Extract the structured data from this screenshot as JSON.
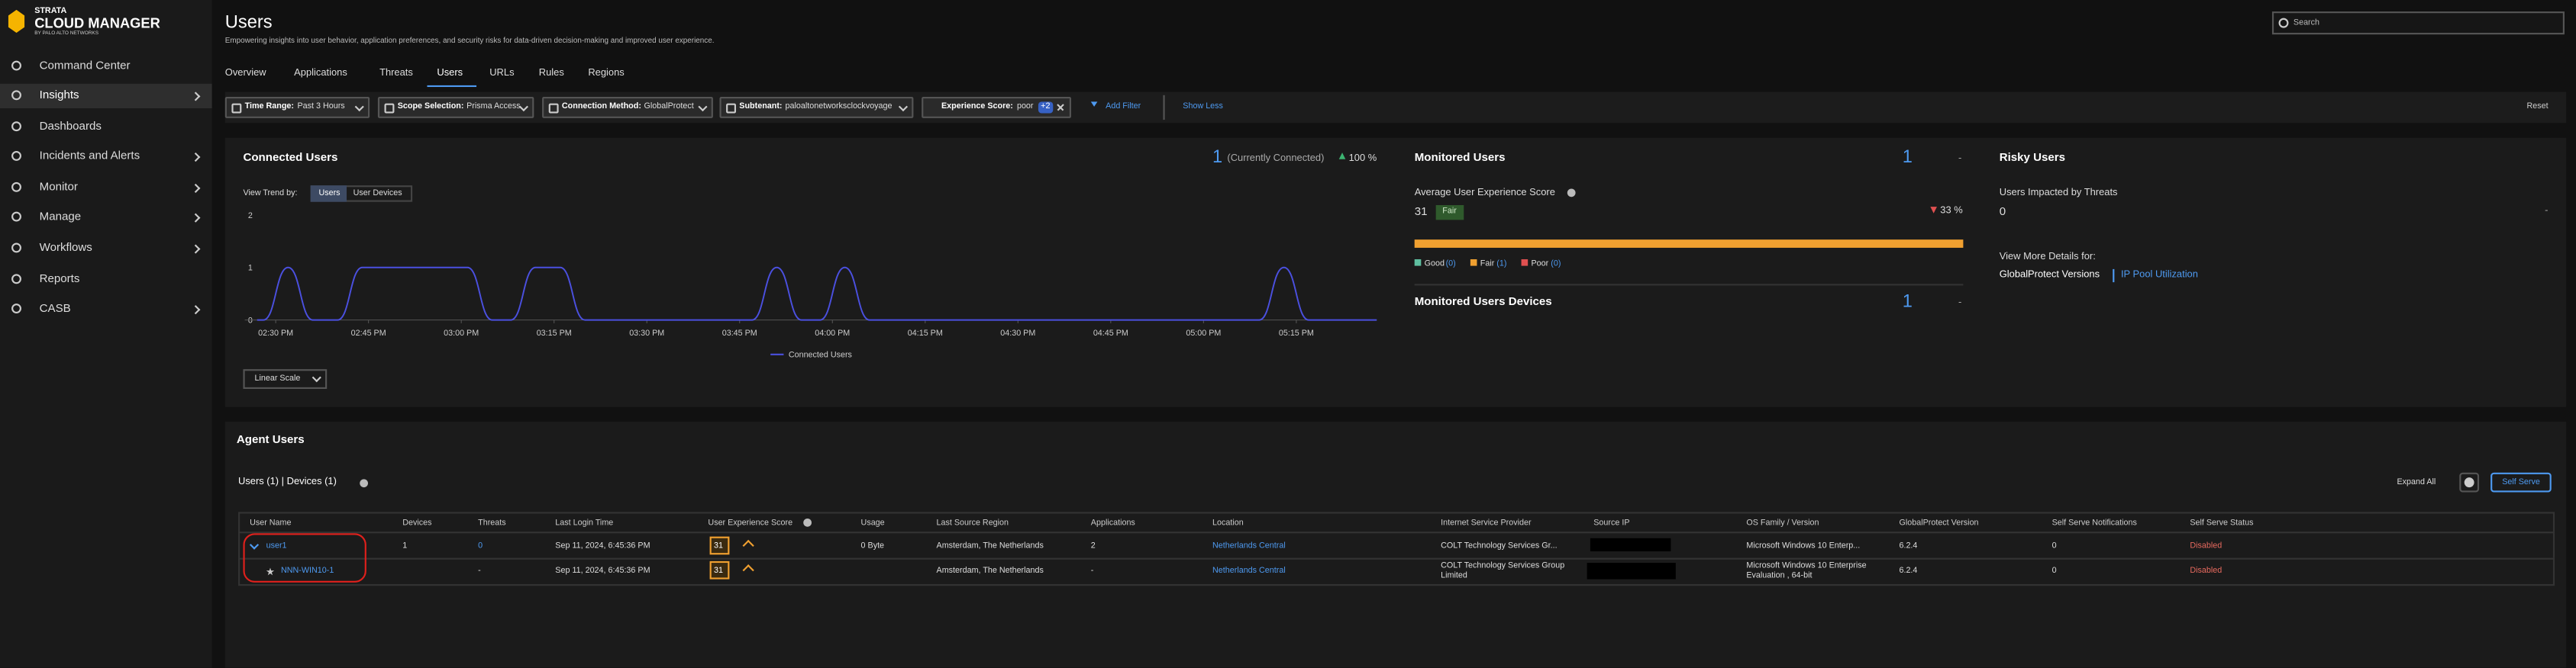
{
  "sidebar": {
    "brand_top": "STRATA",
    "brand": "CLOUD MANAGER",
    "brand_sub": "BY PALO ALTO NETWORKS",
    "items": [
      "Command Center",
      "Insights",
      "Dashboards",
      "Incidents and Alerts",
      "Monitor",
      "Manage",
      "Workflows",
      "Reports",
      "CASB"
    ]
  },
  "header": {
    "title": "Users",
    "subtitle": "Empowering insights into user behavior, application preferences, and security risks for data-driven decision-making and improved user experience.",
    "search": "Search"
  },
  "tabs": [
    "Overview",
    "Applications",
    "Threats",
    "Users",
    "URLs",
    "Rules",
    "Regions"
  ],
  "filters": {
    "chips": [
      {
        "label": "Time Range:",
        "value": "Past 3 Hours"
      },
      {
        "label": "Scope Selection:",
        "value": "Prisma Access"
      },
      {
        "label": "Connection Method:",
        "value": "GlobalProtect"
      },
      {
        "label": "Subtenant:",
        "value": "paloaltonetworksclockvoyage"
      },
      {
        "label": "Experience Score:",
        "value": "poor",
        "badge": "+2"
      }
    ],
    "add_filter": "Add Filter",
    "show_less": "Show Less",
    "reset": "Reset"
  },
  "connected_users": {
    "title": "Connected Users",
    "count": 1,
    "count_note": "(Currently Connected)",
    "change": "100 %",
    "view_trend": "View Trend by:",
    "toggle": [
      "Users",
      "User Devices"
    ],
    "scale": "Linear Scale",
    "chart": {
      "type": "line",
      "x": [
        27,
        28,
        32,
        36,
        40,
        44,
        61,
        65,
        68,
        72,
        76,
        80,
        107,
        111,
        115,
        118,
        122,
        126,
        189,
        193,
        197,
        208
      ],
      "series": [
        {
          "name": "Connected Users",
          "color": "#4b50e0",
          "values": [
            0,
            0,
            1,
            0,
            0,
            1,
            1,
            0,
            0,
            1,
            1,
            0,
            0,
            1,
            0,
            0,
            1,
            0,
            0,
            1,
            0,
            0
          ]
        }
      ],
      "xlim": [
        25,
        208
      ],
      "xticks": [
        {
          "value": 30,
          "label": "02:30 PM"
        },
        {
          "value": 45,
          "label": "02:45 PM"
        },
        {
          "value": 60,
          "label": "03:00 PM"
        },
        {
          "value": 75,
          "label": "03:15 PM"
        },
        {
          "value": 90,
          "label": "03:30 PM"
        },
        {
          "value": 105,
          "label": "03:45 PM"
        },
        {
          "value": 120,
          "label": "04:00 PM"
        },
        {
          "value": 135,
          "label": "04:15 PM"
        },
        {
          "value": 150,
          "label": "04:30 PM"
        },
        {
          "value": 165,
          "label": "04:45 PM"
        },
        {
          "value": 180,
          "label": "05:00 PM"
        },
        {
          "value": 195,
          "label": "05:15 PM"
        }
      ],
      "ylim": [
        0,
        2
      ],
      "yticks": [
        0,
        1,
        2
      ]
    }
  },
  "monitored_users": {
    "title": "Monitored Users",
    "count": 1,
    "dash": "-",
    "avg_label": "Average User Experience Score",
    "score": 31,
    "rating": "Fair",
    "change": "33 %",
    "legend": [
      {
        "name": "Good",
        "count": "(0)"
      },
      {
        "name": "Fair",
        "count": "(1)"
      },
      {
        "name": "Poor",
        "count": "(0)"
      }
    ]
  },
  "monitored_devices": {
    "title": "Monitored Users Devices",
    "count": 1,
    "dash": "-"
  },
  "risky_users": {
    "title": "Risky Users",
    "label": "Users Impacted by Threats",
    "count": 0,
    "dash": "-",
    "details": "View More Details for:",
    "links": [
      "GlobalProtect Versions",
      "IP Pool Utilization"
    ]
  },
  "agent_users": {
    "title": "Agent Users",
    "summary": "Users (1) | Devices (1)",
    "expand": "Expand All",
    "self_serve": "Self Serve",
    "table": {
      "columns": [
        "User Name",
        "Devices",
        "Threats",
        "Last Login Time",
        "User Experience Score",
        "Usage",
        "Last Source Region",
        "Applications",
        "Location",
        "Internet Service Provider",
        "Source IP",
        "OS Family / Version",
        "GlobalProtect Version",
        "Self Serve Notifications",
        "Self Serve Status"
      ],
      "rows": [
        [
          "user1",
          1,
          0,
          "Sep 11, 2024, 6:45:36 PM",
          31,
          "0 Byte",
          "Amsterdam, The Netherlands",
          2,
          "Netherlands Central",
          "COLT Technology Services Gr...",
          null,
          "Microsoft Windows 10 Enterp...",
          "6.2.4",
          0,
          "Disabled"
        ],
        [
          "NNN-WIN10-1",
          null,
          "-",
          "Sep 11, 2024, 6:45:36 PM",
          31,
          null,
          "Amsterdam, The Netherlands",
          "-",
          "Netherlands Central",
          "COLT Technology Services Group Limited",
          null,
          "Microsoft Windows 10 Enterprise Evaluation , 64-bit",
          "6.2.4",
          0,
          "Disabled"
        ]
      ]
    }
  }
}
